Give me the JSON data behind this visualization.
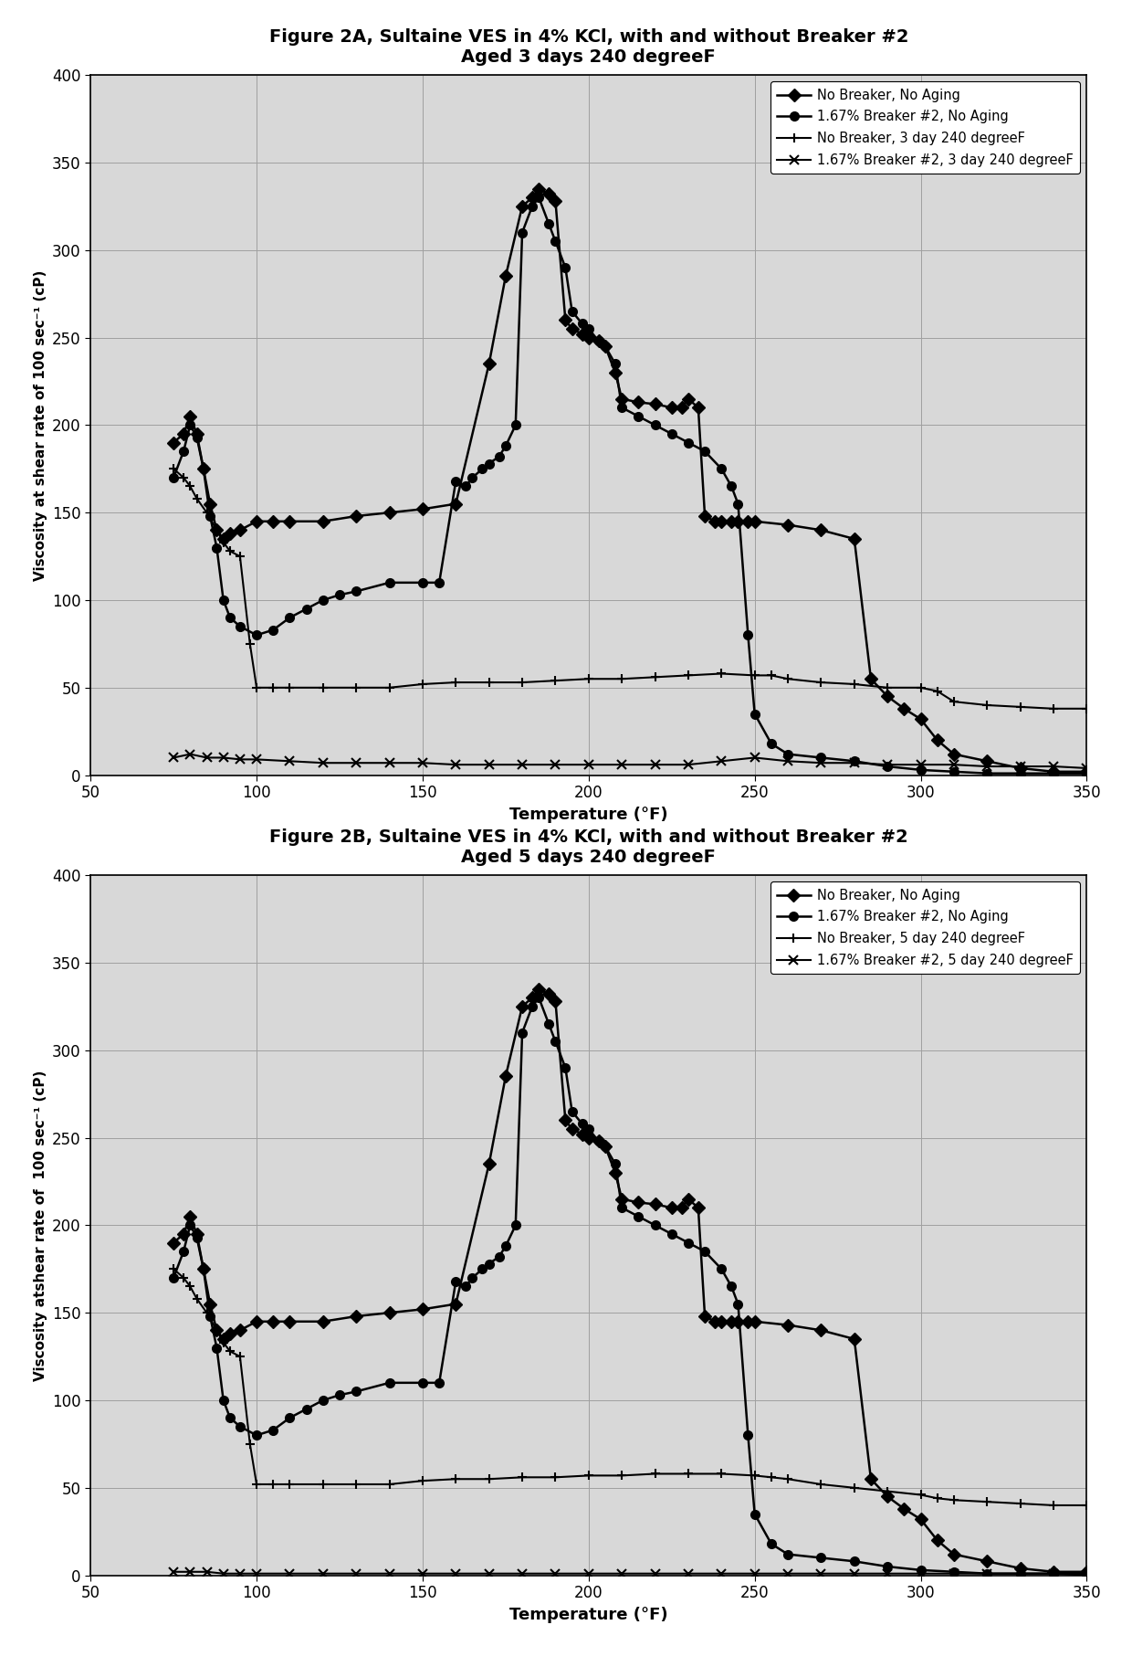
{
  "fig2A": {
    "title_line1": "Figure 2A, Sultaine VES in 4% KCl, with and without Breaker #2",
    "title_line2": "Aged 3 days 240 degreeF",
    "xlabel": "Temperature (°F)",
    "ylabel": "Viscosity at shear rate of 100 sec⁻¹ (cP)",
    "xlim": [
      50,
      350
    ],
    "ylim": [
      0,
      400
    ],
    "xticks": [
      50,
      100,
      150,
      200,
      250,
      300,
      350
    ],
    "yticks": [
      0,
      50,
      100,
      150,
      200,
      250,
      300,
      350,
      400
    ],
    "legend_labels": [
      "No Breaker, No Aging",
      "1.67% Breaker #2, No Aging",
      "No Breaker, 3 day 240 degreeF",
      "1.67% Breaker #2, 3 day 240 degreeF"
    ],
    "series": {
      "no_breaker_no_aging": {
        "x": [
          75,
          78,
          80,
          82,
          84,
          86,
          88,
          90,
          92,
          95,
          100,
          105,
          110,
          120,
          130,
          140,
          150,
          160,
          170,
          175,
          180,
          183,
          185,
          188,
          190,
          193,
          195,
          198,
          200,
          203,
          205,
          208,
          210,
          215,
          220,
          225,
          228,
          230,
          233,
          235,
          238,
          240,
          243,
          245,
          248,
          250,
          260,
          270,
          280,
          285,
          290,
          295,
          300,
          305,
          310,
          320,
          330,
          340,
          350
        ],
        "y": [
          190,
          195,
          205,
          195,
          175,
          155,
          140,
          135,
          138,
          140,
          145,
          145,
          145,
          145,
          148,
          150,
          152,
          155,
          235,
          285,
          325,
          330,
          335,
          332,
          328,
          260,
          255,
          252,
          250,
          248,
          245,
          230,
          215,
          213,
          212,
          210,
          210,
          215,
          210,
          148,
          145,
          145,
          145,
          145,
          145,
          145,
          143,
          140,
          135,
          55,
          45,
          38,
          32,
          20,
          12,
          8,
          4,
          2,
          2
        ]
      },
      "breaker2_no_aging": {
        "x": [
          75,
          78,
          80,
          82,
          84,
          86,
          88,
          90,
          92,
          95,
          100,
          105,
          110,
          115,
          120,
          125,
          130,
          140,
          150,
          155,
          160,
          163,
          165,
          168,
          170,
          173,
          175,
          178,
          180,
          183,
          185,
          188,
          190,
          193,
          195,
          198,
          200,
          203,
          205,
          208,
          210,
          215,
          220,
          225,
          230,
          235,
          240,
          243,
          245,
          248,
          250,
          255,
          260,
          270,
          280,
          290,
          300,
          310,
          320,
          330,
          340,
          350
        ],
        "y": [
          170,
          185,
          200,
          193,
          175,
          148,
          130,
          100,
          90,
          85,
          80,
          83,
          90,
          95,
          100,
          103,
          105,
          110,
          110,
          110,
          168,
          165,
          170,
          175,
          178,
          182,
          188,
          200,
          310,
          325,
          330,
          315,
          305,
          290,
          265,
          258,
          255,
          248,
          245,
          235,
          210,
          205,
          200,
          195,
          190,
          185,
          175,
          165,
          155,
          80,
          35,
          18,
          12,
          10,
          8,
          5,
          3,
          2,
          1,
          1,
          1,
          1
        ]
      },
      "no_breaker_3day": {
        "x": [
          75,
          78,
          80,
          82,
          85,
          88,
          90,
          92,
          95,
          98,
          100,
          105,
          110,
          120,
          130,
          140,
          150,
          160,
          170,
          180,
          190,
          200,
          210,
          220,
          230,
          240,
          250,
          255,
          260,
          270,
          280,
          290,
          300,
          305,
          310,
          320,
          330,
          340,
          350
        ],
        "y": [
          175,
          170,
          165,
          158,
          150,
          140,
          133,
          128,
          125,
          75,
          50,
          50,
          50,
          50,
          50,
          50,
          52,
          53,
          53,
          53,
          54,
          55,
          55,
          56,
          57,
          58,
          57,
          57,
          55,
          53,
          52,
          50,
          50,
          48,
          42,
          40,
          39,
          38,
          38
        ]
      },
      "breaker2_3day": {
        "x": [
          75,
          80,
          85,
          90,
          95,
          100,
          110,
          120,
          130,
          140,
          150,
          160,
          170,
          180,
          190,
          200,
          210,
          220,
          230,
          240,
          250,
          260,
          270,
          280,
          290,
          300,
          310,
          320,
          330,
          340,
          350
        ],
        "y": [
          10,
          12,
          10,
          10,
          9,
          9,
          8,
          7,
          7,
          7,
          7,
          6,
          6,
          6,
          6,
          6,
          6,
          6,
          6,
          8,
          10,
          8,
          7,
          7,
          6,
          6,
          6,
          5,
          5,
          5,
          4
        ]
      }
    }
  },
  "fig2B": {
    "title_line1": "Figure 2B, Sultaine VES in 4% KCl, with and without Breaker #2",
    "title_line2": "Aged 5 days 240 degreeF",
    "xlabel": "Temperature (°F)",
    "ylabel": "Viscosity atshear rate of  100 sec⁻¹ (cP)",
    "xlim": [
      50,
      350
    ],
    "ylim": [
      0,
      400
    ],
    "xticks": [
      50,
      100,
      150,
      200,
      250,
      300,
      350
    ],
    "yticks": [
      0,
      50,
      100,
      150,
      200,
      250,
      300,
      350,
      400
    ],
    "legend_labels": [
      "No Breaker, No Aging",
      "1.67% Breaker #2, No Aging",
      "No Breaker, 5 day 240 degreeF",
      "1.67% Breaker #2, 5 day 240 degreeF"
    ],
    "series": {
      "no_breaker_no_aging": {
        "x": [
          75,
          78,
          80,
          82,
          84,
          86,
          88,
          90,
          92,
          95,
          100,
          105,
          110,
          120,
          130,
          140,
          150,
          160,
          170,
          175,
          180,
          183,
          185,
          188,
          190,
          193,
          195,
          198,
          200,
          203,
          205,
          208,
          210,
          215,
          220,
          225,
          228,
          230,
          233,
          235,
          238,
          240,
          243,
          245,
          248,
          250,
          260,
          270,
          280,
          285,
          290,
          295,
          300,
          305,
          310,
          320,
          330,
          340,
          350
        ],
        "y": [
          190,
          195,
          205,
          195,
          175,
          155,
          140,
          135,
          138,
          140,
          145,
          145,
          145,
          145,
          148,
          150,
          152,
          155,
          235,
          285,
          325,
          330,
          335,
          332,
          328,
          260,
          255,
          252,
          250,
          248,
          245,
          230,
          215,
          213,
          212,
          210,
          210,
          215,
          210,
          148,
          145,
          145,
          145,
          145,
          145,
          145,
          143,
          140,
          135,
          55,
          45,
          38,
          32,
          20,
          12,
          8,
          4,
          2,
          2
        ]
      },
      "breaker2_no_aging": {
        "x": [
          75,
          78,
          80,
          82,
          84,
          86,
          88,
          90,
          92,
          95,
          100,
          105,
          110,
          115,
          120,
          125,
          130,
          140,
          150,
          155,
          160,
          163,
          165,
          168,
          170,
          173,
          175,
          178,
          180,
          183,
          185,
          188,
          190,
          193,
          195,
          198,
          200,
          203,
          205,
          208,
          210,
          215,
          220,
          225,
          230,
          235,
          240,
          243,
          245,
          248,
          250,
          255,
          260,
          270,
          280,
          290,
          300,
          310,
          320,
          330,
          340,
          350
        ],
        "y": [
          170,
          185,
          200,
          193,
          175,
          148,
          130,
          100,
          90,
          85,
          80,
          83,
          90,
          95,
          100,
          103,
          105,
          110,
          110,
          110,
          168,
          165,
          170,
          175,
          178,
          182,
          188,
          200,
          310,
          325,
          330,
          315,
          305,
          290,
          265,
          258,
          255,
          248,
          245,
          235,
          210,
          205,
          200,
          195,
          190,
          185,
          175,
          165,
          155,
          80,
          35,
          18,
          12,
          10,
          8,
          5,
          3,
          2,
          1,
          1,
          1,
          1
        ]
      },
      "no_breaker_5day": {
        "x": [
          75,
          78,
          80,
          82,
          85,
          88,
          90,
          92,
          95,
          98,
          100,
          105,
          110,
          120,
          130,
          140,
          150,
          160,
          170,
          180,
          190,
          200,
          210,
          220,
          230,
          240,
          250,
          255,
          260,
          270,
          280,
          290,
          300,
          305,
          310,
          320,
          330,
          340,
          350
        ],
        "y": [
          175,
          170,
          165,
          158,
          150,
          140,
          133,
          128,
          125,
          75,
          52,
          52,
          52,
          52,
          52,
          52,
          54,
          55,
          55,
          56,
          56,
          57,
          57,
          58,
          58,
          58,
          57,
          56,
          55,
          52,
          50,
          48,
          46,
          44,
          43,
          42,
          41,
          40,
          40
        ]
      },
      "breaker2_5day": {
        "x": [
          75,
          80,
          85,
          90,
          95,
          100,
          110,
          120,
          130,
          140,
          150,
          160,
          170,
          180,
          190,
          200,
          210,
          220,
          230,
          240,
          250,
          260,
          270,
          280,
          290,
          300,
          310,
          320,
          330,
          340,
          350
        ],
        "y": [
          2,
          2,
          2,
          1,
          1,
          1,
          1,
          1,
          1,
          1,
          1,
          1,
          1,
          1,
          1,
          1,
          1,
          1,
          1,
          1,
          1,
          1,
          1,
          1,
          1,
          1,
          1,
          1,
          1,
          1,
          0
        ]
      }
    }
  }
}
